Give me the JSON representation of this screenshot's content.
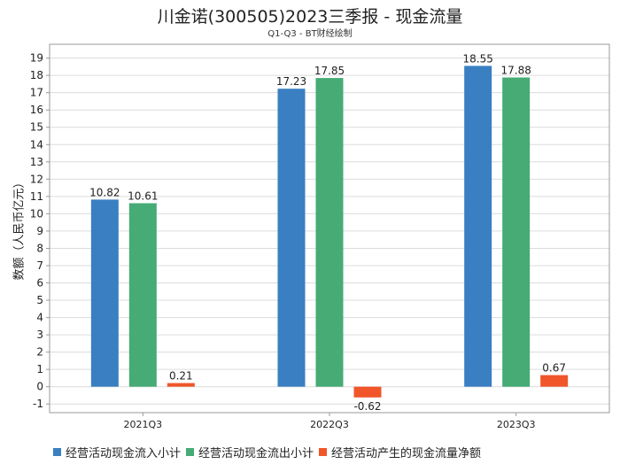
{
  "chart_data": {
    "type": "bar",
    "title": "川金诺(300505)2023三季报 - 现金流量",
    "subtitle": "Q1-Q3 - BT财经绘制",
    "ylabel": "数额（人民币亿元）",
    "xlabel": "",
    "categories": [
      "2021Q3",
      "2022Q3",
      "2023Q3"
    ],
    "ylim": [
      -1.5,
      19.8
    ],
    "yticks": [
      -1,
      0,
      1,
      2,
      3,
      4,
      5,
      6,
      7,
      8,
      9,
      10,
      11,
      12,
      13,
      14,
      15,
      16,
      17,
      18,
      19
    ],
    "grid": true,
    "legend_position": "bottom",
    "series": [
      {
        "name": "经营活动现金流入小计",
        "color": "#3a7fc1",
        "values": [
          10.82,
          17.23,
          18.55
        ]
      },
      {
        "name": "经营活动现金流出小计",
        "color": "#46ab75",
        "values": [
          10.61,
          17.85,
          17.88
        ]
      },
      {
        "name": "经营活动产生的现金流量净额",
        "color": "#f0562a",
        "values": [
          0.21,
          -0.62,
          0.67
        ]
      }
    ]
  }
}
